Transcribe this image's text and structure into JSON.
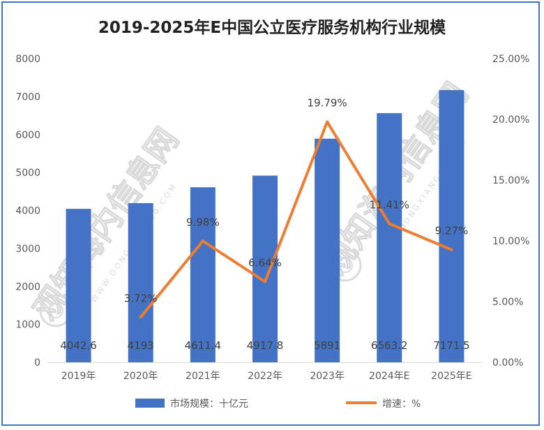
{
  "colors": {
    "bar": "#4472c4",
    "line": "#ed7d31",
    "frame": "#4472c4",
    "axis": "#d9d9d9",
    "text": "#595959"
  },
  "watermark": {
    "text": "观知海内信息网",
    "subtext": "WWW.DONGXIANGQB.COM"
  },
  "chart_data": {
    "type": "bar",
    "title": "2019-2025年E中国公立医疗服务机构行业规模",
    "categories": [
      "2019年",
      "2020年",
      "2021年",
      "2022年",
      "2023年",
      "2024年E",
      "2025年E"
    ],
    "series": [
      {
        "name": "市场规模：十亿元",
        "type": "bar",
        "axis": "left",
        "values": [
          4042.6,
          4193,
          4611.4,
          4917.8,
          5891,
          6563.2,
          7171.5
        ],
        "labels": [
          "4042.6",
          "4193",
          "4611.4",
          "4917.8",
          "5891",
          "6563.2",
          "7171.5"
        ]
      },
      {
        "name": "增速：%",
        "type": "line",
        "axis": "right",
        "values": [
          null,
          3.72,
          9.98,
          6.64,
          19.79,
          11.41,
          9.27
        ],
        "labels": [
          "",
          "3.72%",
          "9.98%",
          "6.64%",
          "19.79%",
          "11.41%",
          "9.27%"
        ]
      }
    ],
    "y_left": {
      "min": 0,
      "max": 8000,
      "ticks": [
        "0",
        "1000",
        "2000",
        "3000",
        "4000",
        "5000",
        "6000",
        "7000",
        "8000"
      ]
    },
    "y_right": {
      "min": 0,
      "max": 25,
      "ticks": [
        "0.00%",
        "5.00%",
        "10.00%",
        "15.00%",
        "20.00%",
        "25.00%"
      ]
    },
    "grid": false,
    "legend_position": "bottom"
  }
}
